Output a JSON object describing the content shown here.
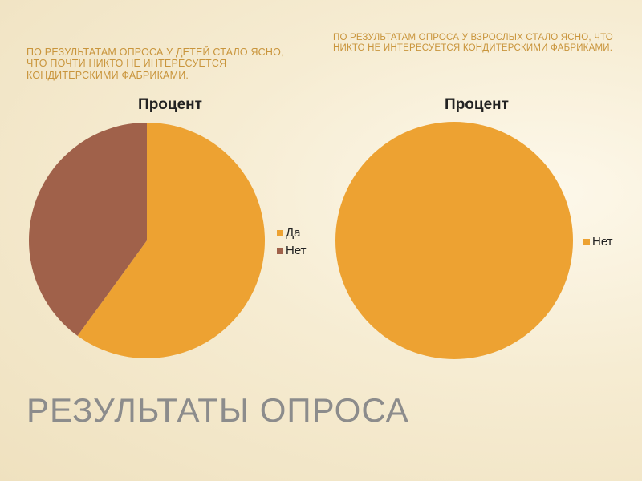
{
  "title": "РЕЗУЛЬТАТЫ ОПРОСА",
  "chart_data": [
    {
      "type": "pie",
      "subtitle": "ПО РЕЗУЛЬТАТАМ ОПРОСА У ДЕТЕЙ СТАЛО ЯСНО, ЧТО ПОЧТИ НИКТО НЕ ИНТЕРЕСУЕТСЯ КОНДИТЕРСКИМИ ФАБРИКАМИ.",
      "title": "Процент",
      "categories": [
        "Да",
        "Нет"
      ],
      "values": [
        60,
        40
      ],
      "colors": [
        "#eda232",
        "#a0614a"
      ],
      "legend": "right"
    },
    {
      "type": "pie",
      "subtitle": "ПО РЕЗУЛЬТАТАМ ОПРОСА У ВЗРОСЛЫХ СТАЛО ЯСНО, ЧТО НИКТО НЕ ИНТЕРЕСУЕТСЯ КОНДИТЕРСКИМИ ФАБРИКАМИ.",
      "title": "Процент",
      "categories": [
        "Нет"
      ],
      "values": [
        100
      ],
      "colors": [
        "#eda232"
      ],
      "legend": "right"
    }
  ]
}
